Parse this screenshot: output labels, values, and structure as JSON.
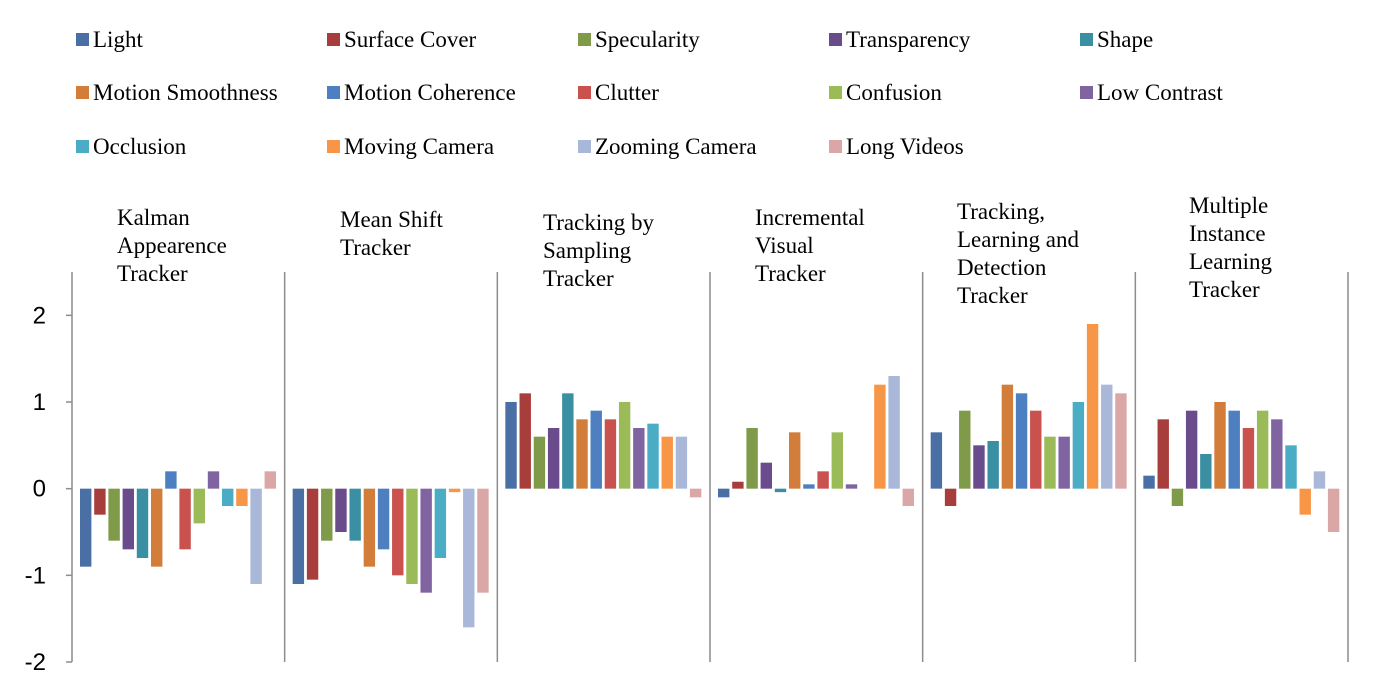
{
  "chart_data": {
    "type": "bar",
    "categories": [
      "Kalman Appearence Tracker",
      "Mean Shift Tracker",
      "Tracking by Sampling Tracker",
      "Incremental Visual Tracker",
      "Tracking, Learning and Detection Tracker",
      "Multiple Instance Learning Tracker"
    ],
    "category_label_lines": [
      [
        "Kalman",
        "Appearence",
        "Tracker"
      ],
      [
        "Mean Shift",
        "Tracker"
      ],
      [
        "Tracking by",
        "Sampling",
        "Tracker"
      ],
      [
        "Incremental",
        "Visual",
        "Tracker"
      ],
      [
        "Tracking,",
        "Learning and",
        "Detection",
        "Tracker"
      ],
      [
        "Multiple",
        "Instance",
        "Learning",
        "Tracker"
      ]
    ],
    "series": [
      {
        "name": "Light",
        "color": "#4a6fa5",
        "values": [
          -0.9,
          -1.1,
          1.0,
          -0.1,
          0.65,
          0.15
        ]
      },
      {
        "name": "Surface Cover",
        "color": "#a83e3c",
        "values": [
          -0.3,
          -1.05,
          1.1,
          0.08,
          -0.2,
          0.8
        ]
      },
      {
        "name": "Specularity",
        "color": "#7f9a48",
        "values": [
          -0.6,
          -0.6,
          0.6,
          0.7,
          0.9,
          -0.2
        ]
      },
      {
        "name": "Transparency",
        "color": "#6a4c8c",
        "values": [
          -0.7,
          -0.5,
          0.7,
          0.3,
          0.5,
          0.9
        ]
      },
      {
        "name": "Shape",
        "color": "#3a8fa3",
        "values": [
          -0.8,
          -0.6,
          1.1,
          -0.04,
          0.55,
          0.4
        ]
      },
      {
        "name": "Motion Smoothness",
        "color": "#d27d3a",
        "values": [
          -0.9,
          -0.9,
          0.8,
          0.65,
          1.2,
          1.0
        ]
      },
      {
        "name": "Motion Coherence",
        "color": "#4d7fc1",
        "values": [
          0.2,
          -0.7,
          0.9,
          0.05,
          1.1,
          0.9
        ]
      },
      {
        "name": "Clutter",
        "color": "#c9514e",
        "values": [
          -0.7,
          -1.0,
          0.8,
          0.2,
          0.9,
          0.7
        ]
      },
      {
        "name": "Confusion",
        "color": "#9bbb59",
        "values": [
          -0.4,
          -1.1,
          1.0,
          0.65,
          0.6,
          0.9
        ]
      },
      {
        "name": "Low Contrast",
        "color": "#8064a2",
        "values": [
          0.2,
          -1.2,
          0.7,
          0.05,
          0.6,
          0.8
        ]
      },
      {
        "name": "Occlusion",
        "color": "#4bacc6",
        "values": [
          -0.2,
          -0.8,
          0.75,
          0.0,
          1.0,
          0.5
        ]
      },
      {
        "name": "Moving Camera",
        "color": "#f79646",
        "values": [
          -0.2,
          -0.04,
          0.6,
          1.2,
          1.9,
          -0.3
        ]
      },
      {
        "name": "Zooming Camera",
        "color": "#a9b8d8",
        "values": [
          -1.1,
          -1.6,
          0.6,
          1.3,
          1.2,
          0.2
        ]
      },
      {
        "name": "Long Videos",
        "color": "#dba6a6",
        "values": [
          0.2,
          -1.2,
          -0.1,
          -0.2,
          1.1,
          -0.5
        ]
      }
    ],
    "yticks": [
      "2",
      "1",
      "0",
      "-1",
      "-2"
    ],
    "ylim": [
      -2,
      2.5
    ],
    "legend_position": "top",
    "grid": false
  }
}
